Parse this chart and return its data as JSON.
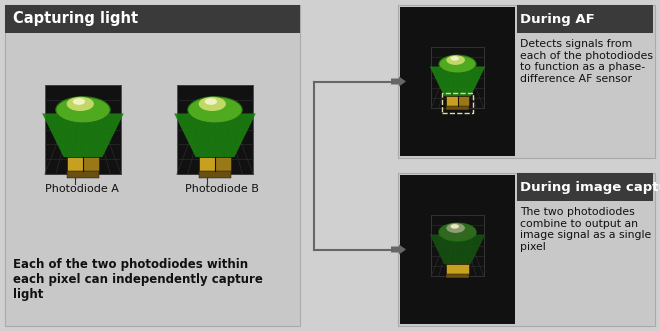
{
  "bg_color": "#d0d0d0",
  "left_panel": {
    "header_bg": "#3a3a3a",
    "header_text": "Capturing light",
    "header_text_color": "#ffffff",
    "panel_bg": "#c8c8c8",
    "label_a": "Photodiode A",
    "label_b": "Photodiode B",
    "body_text": "Each of the two photodiodes within\neach pixel can independently capture\nlight"
  },
  "right_top": {
    "header_bg": "#3a3a3a",
    "header_text": "During AF",
    "header_text_color": "#ffffff",
    "panel_bg": "#c8c8c8",
    "body_text": "Detects signals from\neach of the photodiodes\nto function as a phase-\ndifference AF sensor"
  },
  "right_bottom": {
    "header_bg": "#3a3a3a",
    "header_text": "During image capture",
    "header_text_color": "#ffffff",
    "panel_bg": "#c8c8c8",
    "body_text": "The two photodiodes\ncombine to output an\nimage signal as a single\npixel"
  },
  "arrow_color": "#666666",
  "pixel_gold": "#c8a020",
  "pixel_dark": "#6a5010",
  "pixel_gold2": "#9a7818"
}
